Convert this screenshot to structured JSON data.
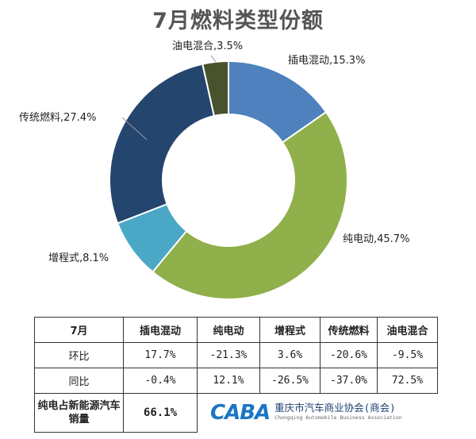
{
  "title": "7月燃料类型份额",
  "chart_data": {
    "type": "pie",
    "title": "7月燃料类型份额",
    "slices": [
      {
        "name": "插电混动",
        "value": 15.3,
        "label": "插电混动,15.3%",
        "color": "#4e81bd"
      },
      {
        "name": "纯电动",
        "value": 45.7,
        "label": "纯电动,45.7%",
        "color": "#8fb04a"
      },
      {
        "name": "增程式",
        "value": 8.1,
        "label": "增程式,8.1%",
        "color": "#4ba7c6"
      },
      {
        "name": "传统燃料",
        "value": 27.4,
        "label": "传统燃料,27.4%",
        "color": "#24456e"
      },
      {
        "name": "油电混合",
        "value": 3.5,
        "label": "油电混合,3.5%",
        "color": "#48522c"
      }
    ]
  },
  "table": {
    "headers": [
      "7月",
      "插电混动",
      "纯电动",
      "增程式",
      "传统燃料",
      "油电混合"
    ],
    "rows": [
      {
        "label": "环比",
        "values": [
          "17.7%",
          "-21.3%",
          "3.6%",
          "-20.6%",
          "-9.5%"
        ]
      },
      {
        "label": "同比",
        "values": [
          "-0.4%",
          "12.1%",
          "-26.5%",
          "-37.0%",
          "72.5%"
        ]
      }
    ],
    "share_label": "纯电占新能源汽车销量",
    "share_value": "66.1%"
  },
  "logo": {
    "mark": "CABA",
    "name_cn": "重庆市汽车商业协会(商会)",
    "name_en": "Chongqing Automobile Business Association"
  }
}
